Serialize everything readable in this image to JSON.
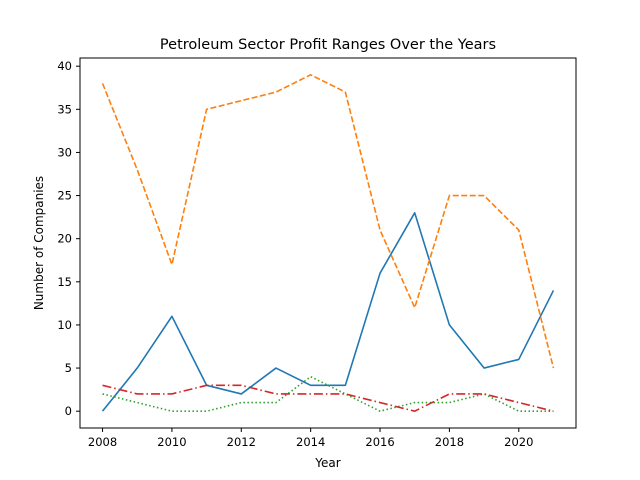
{
  "chart_data": {
    "type": "line",
    "title": "Petroleum Sector Profit Ranges Over the Years",
    "xlabel": "Year",
    "ylabel": "Number of Companies",
    "x": [
      2008,
      2009,
      2010,
      2011,
      2012,
      2013,
      2014,
      2015,
      2016,
      2017,
      2018,
      2019,
      2020,
      2021
    ],
    "xlim": [
      2007.35,
      2021.65
    ],
    "ylim": [
      -1.95,
      40.95
    ],
    "xticks": [
      2008,
      2010,
      2012,
      2014,
      2016,
      2018,
      2020
    ],
    "yticks": [
      0,
      5,
      10,
      15,
      20,
      25,
      30,
      35,
      40
    ],
    "grid": false,
    "legend": "none",
    "series": [
      {
        "color": "#1f77b4",
        "dash": "solid",
        "values": [
          0,
          5,
          11,
          3,
          2,
          5,
          3,
          3,
          16,
          23,
          10,
          5,
          6,
          14
        ]
      },
      {
        "color": "#ff7f0e",
        "dash": "dashed",
        "values": [
          38,
          28,
          17,
          35,
          36,
          37,
          39,
          37,
          21,
          12,
          25,
          25,
          21,
          5
        ]
      },
      {
        "color": "#2ca02c",
        "dash": "dotted",
        "values": [
          2,
          1,
          0,
          0,
          1,
          1,
          4,
          2,
          0,
          1,
          1,
          2,
          0,
          0
        ]
      },
      {
        "color": "#d62728",
        "dash": "dashdot",
        "values": [
          3,
          2,
          2,
          3,
          3,
          2,
          2,
          2,
          1,
          0,
          2,
          2,
          1,
          0
        ]
      }
    ]
  }
}
